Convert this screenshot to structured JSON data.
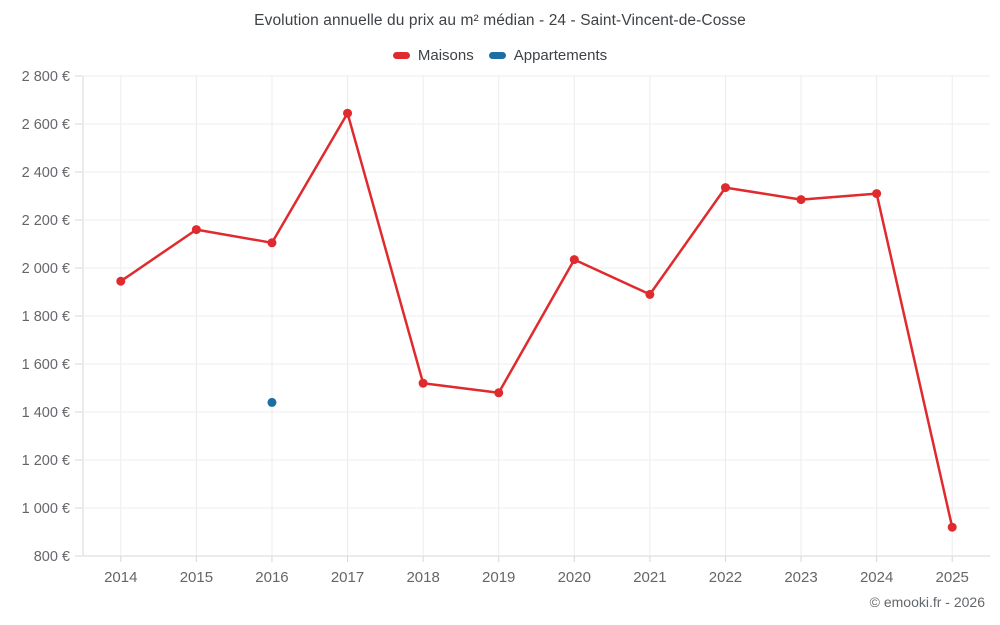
{
  "title": "Evolution annuelle du prix au m² médian - 24 - Saint-Vincent-de-Cosse",
  "legend": [
    {
      "label": "Maisons",
      "color": "#df2b2e"
    },
    {
      "label": "Appartements",
      "color": "#1c6ea4"
    }
  ],
  "footer": {
    "copyright": "© emooki.fr - 2026"
  },
  "colors": {
    "background": "#ffffff",
    "grid": "#ececec",
    "axis": "#d4d7d9",
    "text_primary": "#3e4246",
    "text_secondary": "#63676b",
    "maisons_red": "#df2b2e",
    "appartements_blue": "#1c6ea4"
  },
  "chart_data": {
    "type": "line",
    "title": "Evolution annuelle du prix au m² médian - 24 - Saint-Vincent-de-Cosse",
    "categories": [
      "2014",
      "2015",
      "2016",
      "2017",
      "2018",
      "2019",
      "2020",
      "2021",
      "2022",
      "2023",
      "2024",
      "2025"
    ],
    "series": [
      {
        "name": "Maisons",
        "color": "#df2b2e",
        "values": [
          1945,
          2160,
          2105,
          2645,
          1520,
          1480,
          2035,
          1890,
          2335,
          2285,
          2310,
          920
        ]
      },
      {
        "name": "Appartements",
        "color": "#1c6ea4",
        "values": [
          null,
          null,
          1440,
          null,
          null,
          null,
          null,
          null,
          null,
          null,
          null,
          null
        ]
      }
    ],
    "xlabel": "",
    "ylabel": "",
    "ylim": [
      800,
      2800
    ],
    "ytick_step": 200,
    "ytick_suffix": " €",
    "grid": true,
    "legend_position": "top"
  }
}
